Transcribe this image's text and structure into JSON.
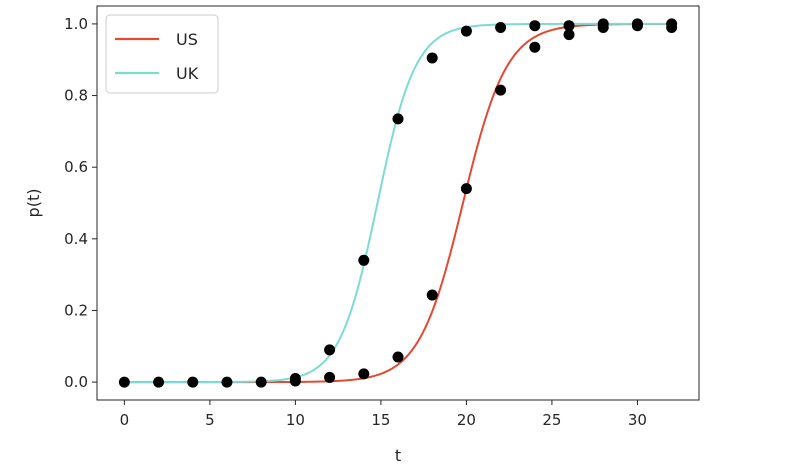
{
  "chart_data": {
    "type": "line",
    "title": "",
    "xlabel": "t",
    "ylabel": "p(t)",
    "xlim": [
      -1.6,
      33.6
    ],
    "ylim": [
      -0.05,
      1.05
    ],
    "xticks": [
      0,
      5,
      10,
      15,
      20,
      25,
      30
    ],
    "yticks": [
      0.0,
      0.2,
      0.4,
      0.6,
      0.8,
      1.0
    ],
    "xtick_labels": [
      "0",
      "5",
      "10",
      "15",
      "20",
      "25",
      "30"
    ],
    "ytick_labels": [
      "0.0",
      "0.2",
      "0.4",
      "0.6",
      "0.8",
      "1.0"
    ],
    "grid": false,
    "legend_position": "top-left",
    "series": [
      {
        "name": "US",
        "kind": "logistic",
        "midpoint": 19.8,
        "rate": 0.78,
        "color": "#e34a33"
      },
      {
        "name": "UK",
        "kind": "logistic",
        "midpoint": 14.8,
        "rate": 0.9,
        "color": "#7ddbd6"
      }
    ],
    "points_color": "#000000",
    "points": [
      {
        "x": 0,
        "y": 0.0
      },
      {
        "x": 2,
        "y": 0.0
      },
      {
        "x": 4,
        "y": 0.0
      },
      {
        "x": 6,
        "y": 0.0
      },
      {
        "x": 8,
        "y": 0.0
      },
      {
        "x": 10,
        "y": 0.003
      },
      {
        "x": 10,
        "y": 0.01
      },
      {
        "x": 12,
        "y": 0.013
      },
      {
        "x": 12,
        "y": 0.09
      },
      {
        "x": 14,
        "y": 0.023
      },
      {
        "x": 14,
        "y": 0.34
      },
      {
        "x": 16,
        "y": 0.07
      },
      {
        "x": 16,
        "y": 0.735
      },
      {
        "x": 18,
        "y": 0.243
      },
      {
        "x": 18,
        "y": 0.905
      },
      {
        "x": 20,
        "y": 0.54
      },
      {
        "x": 20,
        "y": 0.98
      },
      {
        "x": 22,
        "y": 0.815
      },
      {
        "x": 22,
        "y": 0.99
      },
      {
        "x": 24,
        "y": 0.935
      },
      {
        "x": 24,
        "y": 0.995
      },
      {
        "x": 26,
        "y": 0.97
      },
      {
        "x": 26,
        "y": 0.995
      },
      {
        "x": 28,
        "y": 0.99
      },
      {
        "x": 28,
        "y": 1.0
      },
      {
        "x": 30,
        "y": 0.995
      },
      {
        "x": 30,
        "y": 1.0
      },
      {
        "x": 32,
        "y": 0.99
      },
      {
        "x": 32,
        "y": 1.0
      }
    ]
  }
}
